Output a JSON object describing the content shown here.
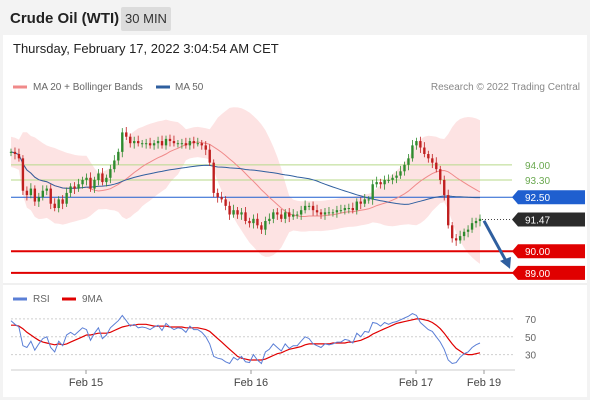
{
  "header": {
    "title": "Crude Oil (WTI)",
    "interval": "30 MIN"
  },
  "timestamp": "Thursday, February 17, 2022 3:04:54 AM CET",
  "credit": "Research © 2022 Trading Central",
  "colors": {
    "ma20": "#f08a8a",
    "ma50": "#2f5f9f",
    "bollinger_fill": "#fde3e3",
    "support_line": "#e00000",
    "resistance_line": "#b7d98a",
    "pivot_line": "#1f5fcf",
    "bull_candle": "#2e8b2e",
    "bear_candle": "#c01f1f",
    "rsi": "#5b7fd6",
    "rsi_ma": "#e00000",
    "arrow": "#2f5f9f"
  },
  "chart_data": [
    {
      "type": "candlestick",
      "legend": [
        {
          "name": "MA 20 + Bollinger Bands",
          "color": "#f08a8a"
        },
        {
          "name": "MA 50",
          "color": "#2f5f9f"
        }
      ],
      "legend_position": "top-left",
      "x_ticks": [
        "Feb 15",
        "Feb 16",
        "Feb 17",
        "Feb 19"
      ],
      "levels": [
        {
          "value": 94.0,
          "label": "94.00",
          "style": "resistance"
        },
        {
          "value": 93.3,
          "label": "93.30",
          "style": "resistance"
        },
        {
          "value": 92.5,
          "label": "92.50",
          "style": "pivot"
        },
        {
          "value": 91.47,
          "label": "91.47",
          "style": "last"
        },
        {
          "value": 90.0,
          "label": "90.00",
          "style": "support"
        },
        {
          "value": 89.0,
          "label": "89.00",
          "style": "support"
        }
      ],
      "ylim": [
        88.9,
        97.0
      ],
      "close": [
        94.6,
        94.5,
        94.3,
        92.8,
        92.6,
        92.9,
        92.3,
        92.5,
        92.8,
        92.9,
        92.2,
        92.0,
        92.4,
        92.2,
        92.7,
        93.0,
        92.9,
        93.1,
        93.3,
        93.4,
        92.9,
        93.3,
        93.6,
        93.2,
        93.4,
        93.8,
        94.2,
        94.6,
        95.5,
        95.3,
        95.0,
        95.1,
        95.0,
        95.0,
        95.0,
        94.9,
        95.0,
        95.1,
        94.9,
        95.2,
        95.1,
        95.0,
        95.0,
        95.0,
        94.9,
        95.1,
        95.0,
        95.0,
        94.9,
        94.7,
        94.1,
        92.7,
        92.5,
        92.4,
        92.1,
        91.7,
        91.9,
        91.7,
        91.8,
        91.4,
        91.3,
        91.5,
        91.2,
        91.0,
        91.4,
        91.5,
        91.8,
        91.7,
        91.5,
        91.8,
        91.6,
        91.7,
        91.7,
        91.9,
        92.1,
        92.1,
        91.9,
        91.8,
        91.7,
        91.8,
        91.8,
        91.8,
        91.9,
        91.9,
        92.0,
        92.0,
        91.9,
        92.3,
        92.2,
        92.4,
        92.4,
        93.1,
        93.2,
        93.1,
        93.3,
        93.3,
        93.4,
        93.5,
        93.7,
        94.0,
        94.3,
        94.9,
        95.1,
        94.8,
        94.5,
        94.3,
        94.1,
        93.8,
        93.3,
        92.6,
        91.2,
        90.6,
        90.5,
        90.7,
        90.9,
        91.0,
        91.3,
        91.4,
        91.5
      ],
      "rsi": {
        "legend": [
          {
            "name": "RSI",
            "color": "#5b7fd6"
          },
          {
            "name": "9MA",
            "color": "#e00000"
          }
        ],
        "y_ticks": [
          70,
          50,
          30
        ],
        "ylim": [
          15,
          80
        ],
        "values": [
          68,
          64,
          61,
          40,
          38,
          45,
          35,
          42,
          48,
          50,
          38,
          33,
          45,
          40,
          52,
          55,
          52,
          56,
          60,
          58,
          46,
          54,
          60,
          48,
          52,
          60,
          64,
          68,
          74,
          68,
          62,
          64,
          60,
          61,
          60,
          58,
          61,
          63,
          57,
          65,
          61,
          58,
          60,
          59,
          55,
          62,
          58,
          58,
          55,
          50,
          42,
          28,
          26,
          25,
          22,
          20,
          27,
          24,
          28,
          22,
          21,
          30,
          24,
          20,
          33,
          36,
          42,
          38,
          34,
          42,
          37,
          40,
          40,
          45,
          50,
          48,
          42,
          40,
          38,
          42,
          41,
          42,
          44,
          44,
          47,
          46,
          43,
          54,
          50,
          56,
          55,
          66,
          65,
          62,
          66,
          64,
          66,
          67,
          69,
          71,
          73,
          76,
          74,
          66,
          62,
          58,
          56,
          50,
          44,
          36,
          24,
          20,
          21,
          27,
          31,
          33,
          38,
          41,
          43
        ],
        "ma9": [
          63,
          63,
          62,
          59,
          55,
          52,
          49,
          46,
          44,
          43,
          42,
          41,
          42,
          41,
          42,
          44,
          46,
          48,
          50,
          52,
          52,
          53,
          54,
          54,
          54,
          55,
          57,
          59,
          61,
          62,
          63,
          63,
          64,
          64,
          64,
          63,
          62,
          62,
          62,
          62,
          61,
          61,
          61,
          61,
          60,
          60,
          60,
          60,
          59,
          58,
          56,
          52,
          48,
          44,
          40,
          36,
          32,
          28,
          26,
          25,
          24,
          24,
          24,
          24,
          25,
          27,
          29,
          31,
          32,
          34,
          36,
          37,
          38,
          39,
          41,
          42,
          42,
          42,
          42,
          42,
          42,
          43,
          43,
          43,
          43,
          44,
          44,
          45,
          46,
          48,
          50,
          53,
          55,
          57,
          59,
          61,
          63,
          65,
          66,
          67,
          68,
          69,
          70,
          70,
          69,
          68,
          66,
          63,
          59,
          54,
          48,
          42,
          37,
          34,
          31,
          30,
          30,
          31,
          32
        ]
      }
    }
  ]
}
